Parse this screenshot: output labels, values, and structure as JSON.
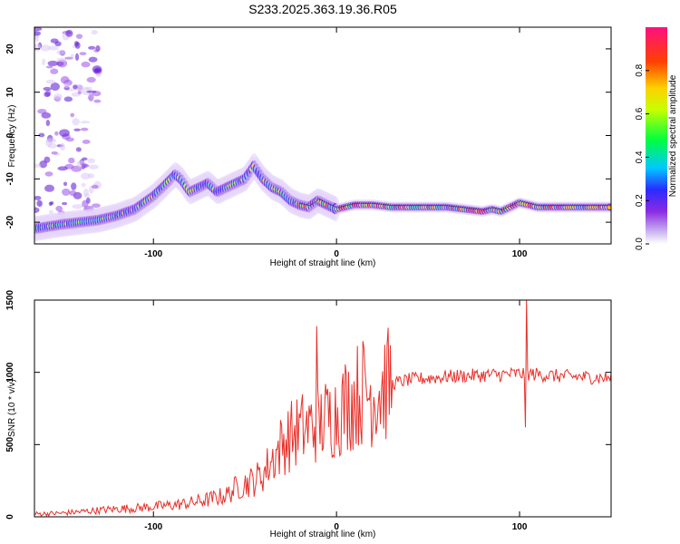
{
  "title": "S233.2025.363.19.36.R05",
  "colors": {
    "snr_line": "#e8302a",
    "axis": "#000000",
    "background": "#ffffff"
  },
  "chart_data": [
    {
      "type": "heatmap",
      "name": "spectrogram",
      "xlabel": "Height of straight line (km)",
      "ylabel": "Frequency (Hz)",
      "xlim": [
        -165,
        150
      ],
      "ylim": [
        -25,
        25
      ],
      "x_ticks": [
        -100,
        0,
        100
      ],
      "y_ticks": [
        -20,
        -10,
        0,
        10,
        20
      ],
      "ridge": {
        "x": [
          -165,
          -150,
          -140,
          -130,
          -120,
          -110,
          -100,
          -95,
          -88,
          -85,
          -80,
          -75,
          -70,
          -65,
          -60,
          -55,
          -50,
          -45,
          -40,
          -35,
          -30,
          -25,
          -20,
          -15,
          -10,
          -5,
          0,
          5,
          10,
          20,
          30,
          40,
          50,
          60,
          70,
          80,
          85,
          90,
          95,
          100,
          110,
          120,
          130,
          140,
          150
        ],
        "y": [
          -21.5,
          -20.5,
          -20,
          -19.5,
          -18.5,
          -17,
          -14,
          -12,
          -9,
          -10,
          -13,
          -12,
          -11,
          -13,
          -12,
          -11,
          -10,
          -7,
          -10,
          -12,
          -13,
          -15,
          -16,
          -16.5,
          -15,
          -16,
          -17,
          -16.5,
          -16,
          -16,
          -16.5,
          -16.5,
          -16.5,
          -16.5,
          -17,
          -17.5,
          -17,
          -17.5,
          -16.5,
          -15.5,
          -16.5,
          -16.5,
          -16.5,
          -16.5,
          -16.5
        ]
      }
    },
    {
      "type": "colorbar",
      "name": "normalized-amplitude",
      "label": "Normalized spectral amplitude",
      "range": [
        0,
        1
      ],
      "ticks": [
        "0.0",
        "0.2",
        "0.4",
        "0.6",
        "0.8"
      ]
    },
    {
      "type": "line",
      "name": "snr",
      "xlabel": "Height of straight line (km)",
      "ylabel": "SNR (10 * v/v)",
      "xlim": [
        -165,
        150
      ],
      "ylim": [
        0,
        1500
      ],
      "x_ticks": [
        -100,
        0,
        100
      ],
      "y_ticks": [
        0,
        500,
        1000,
        1500
      ],
      "series": [
        {
          "name": "SNR",
          "x": [
            -165,
            -150,
            -140,
            -130,
            -120,
            -110,
            -100,
            -90,
            -80,
            -70,
            -60,
            -55,
            -50,
            -45,
            -40,
            -35,
            -30,
            -25,
            -20,
            -15,
            -12,
            -10,
            -5,
            0,
            5,
            10,
            15,
            20,
            25,
            30,
            40,
            50,
            60,
            70,
            80,
            90,
            100,
            103,
            104,
            105,
            110,
            120,
            130,
            140,
            150
          ],
          "y": [
            20,
            25,
            35,
            45,
            55,
            60,
            70,
            80,
            95,
            120,
            150,
            200,
            230,
            250,
            300,
            400,
            500,
            560,
            600,
            620,
            650,
            640,
            680,
            720,
            780,
            830,
            880,
            850,
            900,
            920,
            950,
            960,
            970,
            975,
            980,
            985,
            990,
            990,
            1000,
            990,
            985,
            975,
            970,
            965,
            960
          ]
        }
      ],
      "spikes": [
        {
          "x": -11,
          "y": 1320
        },
        {
          "x": 104,
          "y": 1510
        },
        {
          "x": 103,
          "y": 620
        }
      ]
    }
  ]
}
